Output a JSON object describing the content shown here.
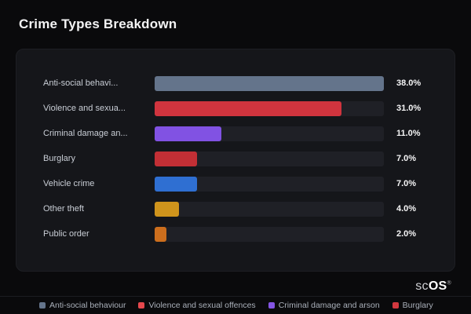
{
  "page": {
    "title": "Crime Types Breakdown"
  },
  "logo": {
    "text_light": "sc",
    "text_bold": "OS",
    "registered": "®"
  },
  "colors": {
    "background": "#0a0a0c",
    "card_background": "#15161a",
    "track": "#1f2026",
    "title_text": "#f4f4f5",
    "label_text": "#c9ced6",
    "value_text": "#f5f5f6",
    "legend_text": "#aab0ba"
  },
  "chart_data": {
    "type": "bar",
    "orientation": "horizontal",
    "title": "Crime Types Breakdown",
    "unit": "%",
    "max_value": 38.0,
    "xlim": [
      0,
      38
    ],
    "grid": false,
    "legend_position": "bottom",
    "categories": [
      "Anti-social behaviour",
      "Violence and sexual offences",
      "Criminal damage and arson",
      "Burglary",
      "Vehicle crime",
      "Other theft",
      "Public order"
    ],
    "values": [
      38.0,
      31.0,
      11.0,
      7.0,
      7.0,
      4.0,
      2.0
    ],
    "rows": [
      {
        "label_display": "Anti-social behavi...",
        "category": "Anti-social behaviour",
        "value": 38.0,
        "value_label": "38.0%",
        "color": "#64748b"
      },
      {
        "label_display": "Violence and sexua...",
        "category": "Violence and sexual offences",
        "value": 31.0,
        "value_label": "31.0%",
        "color": "#d0343e"
      },
      {
        "label_display": "Criminal damage an...",
        "category": "Criminal damage and arson",
        "value": 11.0,
        "value_label": "11.0%",
        "color": "#8152e3"
      },
      {
        "label_display": "Burglary",
        "category": "Burglary",
        "value": 7.0,
        "value_label": "7.0%",
        "color": "#c22f35"
      },
      {
        "label_display": "Vehicle crime",
        "category": "Vehicle crime",
        "value": 7.0,
        "value_label": "7.0%",
        "color": "#2f6fd2"
      },
      {
        "label_display": "Other theft",
        "category": "Other theft",
        "value": 4.0,
        "value_label": "4.0%",
        "color": "#cf941c"
      },
      {
        "label_display": "Public order",
        "category": "Public order",
        "value": 2.0,
        "value_label": "2.0%",
        "color": "#cc6e1d"
      }
    ],
    "legend": [
      {
        "label": "Anti-social behaviour",
        "color": "#64748b"
      },
      {
        "label": "Violence and sexual offences",
        "color": "#e5484d"
      },
      {
        "label": "Criminal damage and arson",
        "color": "#8455e4"
      },
      {
        "label": "Burglary",
        "color": "#d2383f"
      }
    ]
  }
}
